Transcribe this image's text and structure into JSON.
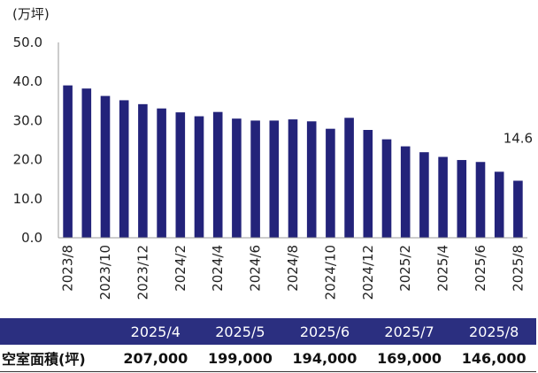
{
  "chart_data": {
    "type": "bar",
    "unit_label": "(万坪)",
    "categories": [
      "2023/8",
      "2023/9",
      "2023/10",
      "2023/11",
      "2023/12",
      "2024/1",
      "2024/2",
      "2024/3",
      "2024/4",
      "2024/5",
      "2024/6",
      "2024/7",
      "2024/8",
      "2024/9",
      "2024/10",
      "2024/11",
      "2024/12",
      "2025/1",
      "2025/2",
      "2025/3",
      "2025/4",
      "2025/5",
      "2025/6",
      "2025/7",
      "2025/8"
    ],
    "tick_labels_shown": [
      "2023/8",
      "2023/10",
      "2023/12",
      "2024/2",
      "2024/4",
      "2024/6",
      "2024/8",
      "2024/10",
      "2024/12",
      "2025/2",
      "2025/4",
      "2025/6",
      "2025/8"
    ],
    "values": [
      39.0,
      38.2,
      36.3,
      35.2,
      34.2,
      33.1,
      32.1,
      31.1,
      32.2,
      30.5,
      30.0,
      30.0,
      30.3,
      29.8,
      27.9,
      30.7,
      27.6,
      25.2,
      23.4,
      21.9,
      20.7,
      19.9,
      19.4,
      16.9,
      14.6
    ],
    "ylim": [
      0,
      50
    ],
    "yticks": [
      "0.0",
      "10.0",
      "20.0",
      "30.0",
      "40.0",
      "50.0"
    ],
    "last_label": "14.6",
    "bar_color": "#23237a",
    "grid": false
  },
  "table": {
    "months": [
      "2025/4",
      "2025/5",
      "2025/6",
      "2025/7",
      "2025/8"
    ],
    "row_label": "空室面積(坪)",
    "values": [
      "207,000",
      "199,000",
      "194,000",
      "169,000",
      "146,000"
    ],
    "header_color": "#2b2f80"
  }
}
